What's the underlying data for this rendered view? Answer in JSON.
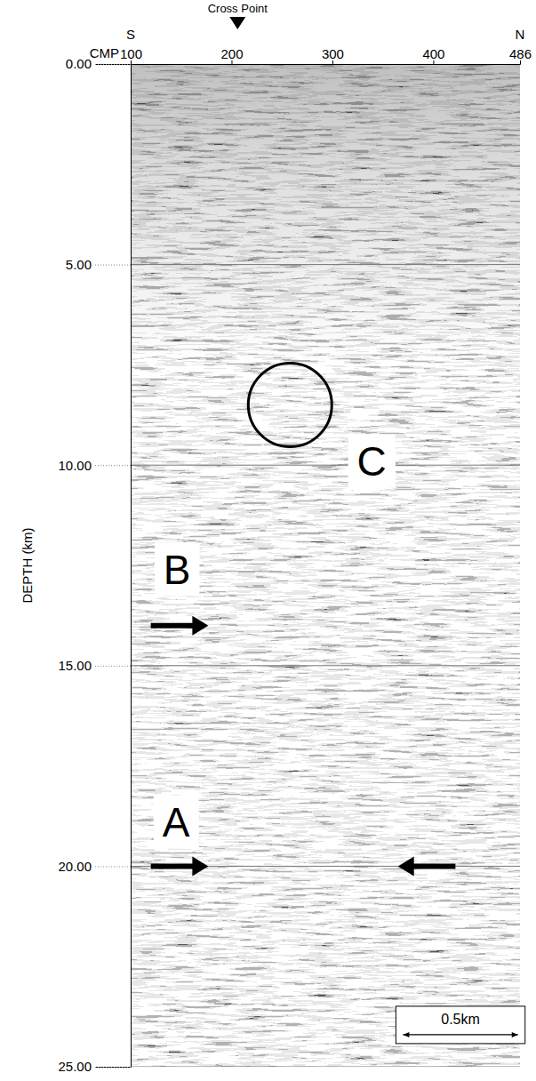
{
  "chart_data": {
    "type": "seismic_section",
    "x_label": "CMP",
    "y_label": "DEPTH (km)",
    "xlim": [
      100,
      486
    ],
    "xticks": [
      100,
      200,
      300,
      400,
      486
    ],
    "ylim": [
      0,
      25
    ],
    "yticks": [
      {
        "value": 0,
        "label": "0.00"
      },
      {
        "value": 5,
        "label": "5.00"
      },
      {
        "value": 10,
        "label": "10.00"
      },
      {
        "value": 15,
        "label": "15.00"
      },
      {
        "value": 20,
        "label": "20.00"
      },
      {
        "value": 25,
        "label": "25.00"
      }
    ],
    "grid": true,
    "x_ends": {
      "left": "S",
      "right": "N"
    },
    "cross_point": {
      "label": "Cross Point",
      "x": 206
    },
    "annotations": [
      {
        "text": "A",
        "x": 145,
        "y": 18.9
      },
      {
        "text": "B",
        "x": 146,
        "y": 12.6
      },
      {
        "text": "C",
        "x": 339,
        "y": 9.9
      }
    ],
    "arrows": [
      {
        "x": [
          120,
          177
        ],
        "y": 20
      },
      {
        "x": [
          422,
          365
        ],
        "y": 20
      },
      {
        "x": [
          120,
          177
        ],
        "y": 14
      }
    ],
    "circles": [
      {
        "x": 258,
        "y": 8.5
      }
    ],
    "scale_bar": {
      "label": "0.5km",
      "x": [
        370,
        484
      ],
      "y": 24.2
    }
  }
}
